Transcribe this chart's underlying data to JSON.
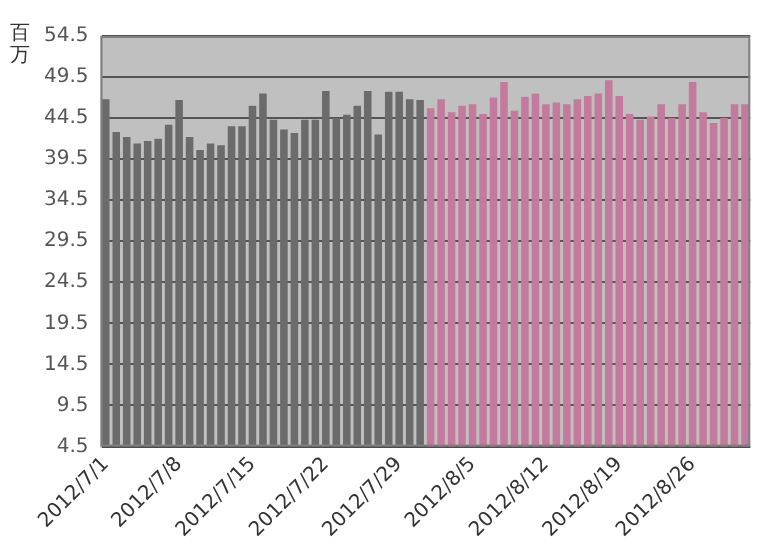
{
  "chart_data": {
    "type": "bar",
    "ylabel": "百万",
    "categories": [
      "2012/7/1",
      null,
      null,
      null,
      null,
      null,
      null,
      "2012/7/8",
      null,
      null,
      null,
      null,
      null,
      null,
      "2012/7/15",
      null,
      null,
      null,
      null,
      null,
      null,
      "2012/7/22",
      null,
      null,
      null,
      null,
      null,
      null,
      "2012/7/29",
      null,
      null,
      null,
      null,
      null,
      null,
      "2012/8/5",
      null,
      null,
      null,
      null,
      null,
      null,
      "2012/8/12",
      null,
      null,
      null,
      null,
      null,
      null,
      "2012/8/19",
      null,
      null,
      null,
      null,
      null,
      null,
      "2012/8/26",
      null,
      null,
      null,
      null,
      null
    ],
    "values": [
      46.8,
      42.8,
      42.2,
      41.4,
      41.7,
      42.0,
      43.7,
      46.7,
      42.2,
      40.6,
      41.4,
      41.2,
      43.5,
      43.5,
      46.0,
      47.5,
      44.3,
      43.1,
      42.7,
      44.3,
      44.3,
      47.8,
      44.5,
      44.9,
      46.0,
      47.8,
      42.5,
      47.7,
      47.7,
      46.8,
      46.7,
      45.7,
      46.8,
      45.2,
      46.0,
      46.2,
      45.0,
      47.0,
      48.9,
      45.4,
      47.1,
      47.5,
      46.2,
      46.4,
      46.2,
      46.8,
      47.2,
      47.5,
      49.1,
      47.2,
      45.0,
      44.3,
      44.7,
      46.2,
      44.5,
      46.2,
      48.9,
      45.2,
      43.9,
      44.5,
      46.2,
      46.2
    ],
    "colors": [
      "#6b6b6b",
      "#6b6b6b",
      "#6b6b6b",
      "#6b6b6b",
      "#6b6b6b",
      "#6b6b6b",
      "#6b6b6b",
      "#6b6b6b",
      "#6b6b6b",
      "#6b6b6b",
      "#6b6b6b",
      "#6b6b6b",
      "#6b6b6b",
      "#6b6b6b",
      "#6b6b6b",
      "#6b6b6b",
      "#6b6b6b",
      "#6b6b6b",
      "#6b6b6b",
      "#6b6b6b",
      "#6b6b6b",
      "#6b6b6b",
      "#6b6b6b",
      "#6b6b6b",
      "#6b6b6b",
      "#6b6b6b",
      "#6b6b6b",
      "#6b6b6b",
      "#6b6b6b",
      "#6b6b6b",
      "#6b6b6b",
      "#c37a9c",
      "#c37a9c",
      "#c37a9c",
      "#c37a9c",
      "#c37a9c",
      "#c37a9c",
      "#c37a9c",
      "#c37a9c",
      "#c37a9c",
      "#c37a9c",
      "#c37a9c",
      "#c37a9c",
      "#c37a9c",
      "#c37a9c",
      "#c37a9c",
      "#c37a9c",
      "#c37a9c",
      "#c37a9c",
      "#c37a9c",
      "#c37a9c",
      "#c37a9c",
      "#c37a9c",
      "#c37a9c",
      "#c37a9c",
      "#c37a9c",
      "#c37a9c",
      "#c37a9c",
      "#c37a9c",
      "#c37a9c",
      "#c37a9c",
      "#c37a9c"
    ],
    "ylim": [
      4.5,
      54.5
    ],
    "yticks": [
      4.5,
      9.5,
      14.5,
      19.5,
      24.5,
      29.5,
      34.5,
      39.5,
      44.5,
      49.5,
      54.5
    ],
    "grid": "y"
  }
}
